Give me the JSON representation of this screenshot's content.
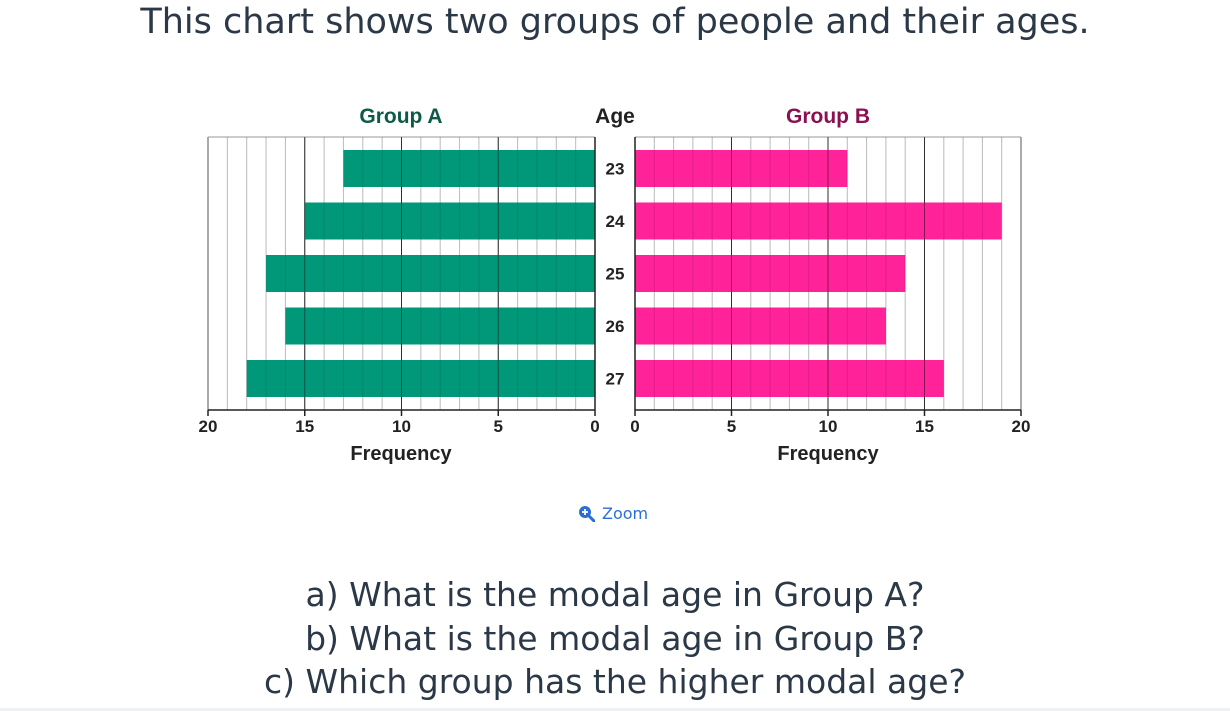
{
  "intro": "This chart shows two groups of people and their ages.",
  "zoom_label": "Zoom",
  "questions": [
    "a) What is the modal age in Group A?",
    "b) What is the modal age in Group B?",
    "c) Which group has the higher modal age?"
  ],
  "colors": {
    "group_a": "#009879",
    "group_b": "#ff2299",
    "group_a_title": "#0e5a48",
    "group_b_title": "#8a1150"
  },
  "icons": {
    "zoom": "zoom-in-icon"
  },
  "chart_data": {
    "type": "bar",
    "orientation": "horizontal",
    "category_label": "Age",
    "categories": [
      "23",
      "24",
      "25",
      "26",
      "27"
    ],
    "series": [
      {
        "name": "Group A",
        "values": [
          13,
          15,
          17,
          16,
          18
        ]
      },
      {
        "name": "Group B",
        "values": [
          11,
          19,
          14,
          13,
          16
        ]
      }
    ],
    "xlabel": "Frequency",
    "xlim": [
      0,
      20
    ],
    "xticks": [
      0,
      5,
      10,
      15,
      20
    ],
    "grid": true
  }
}
